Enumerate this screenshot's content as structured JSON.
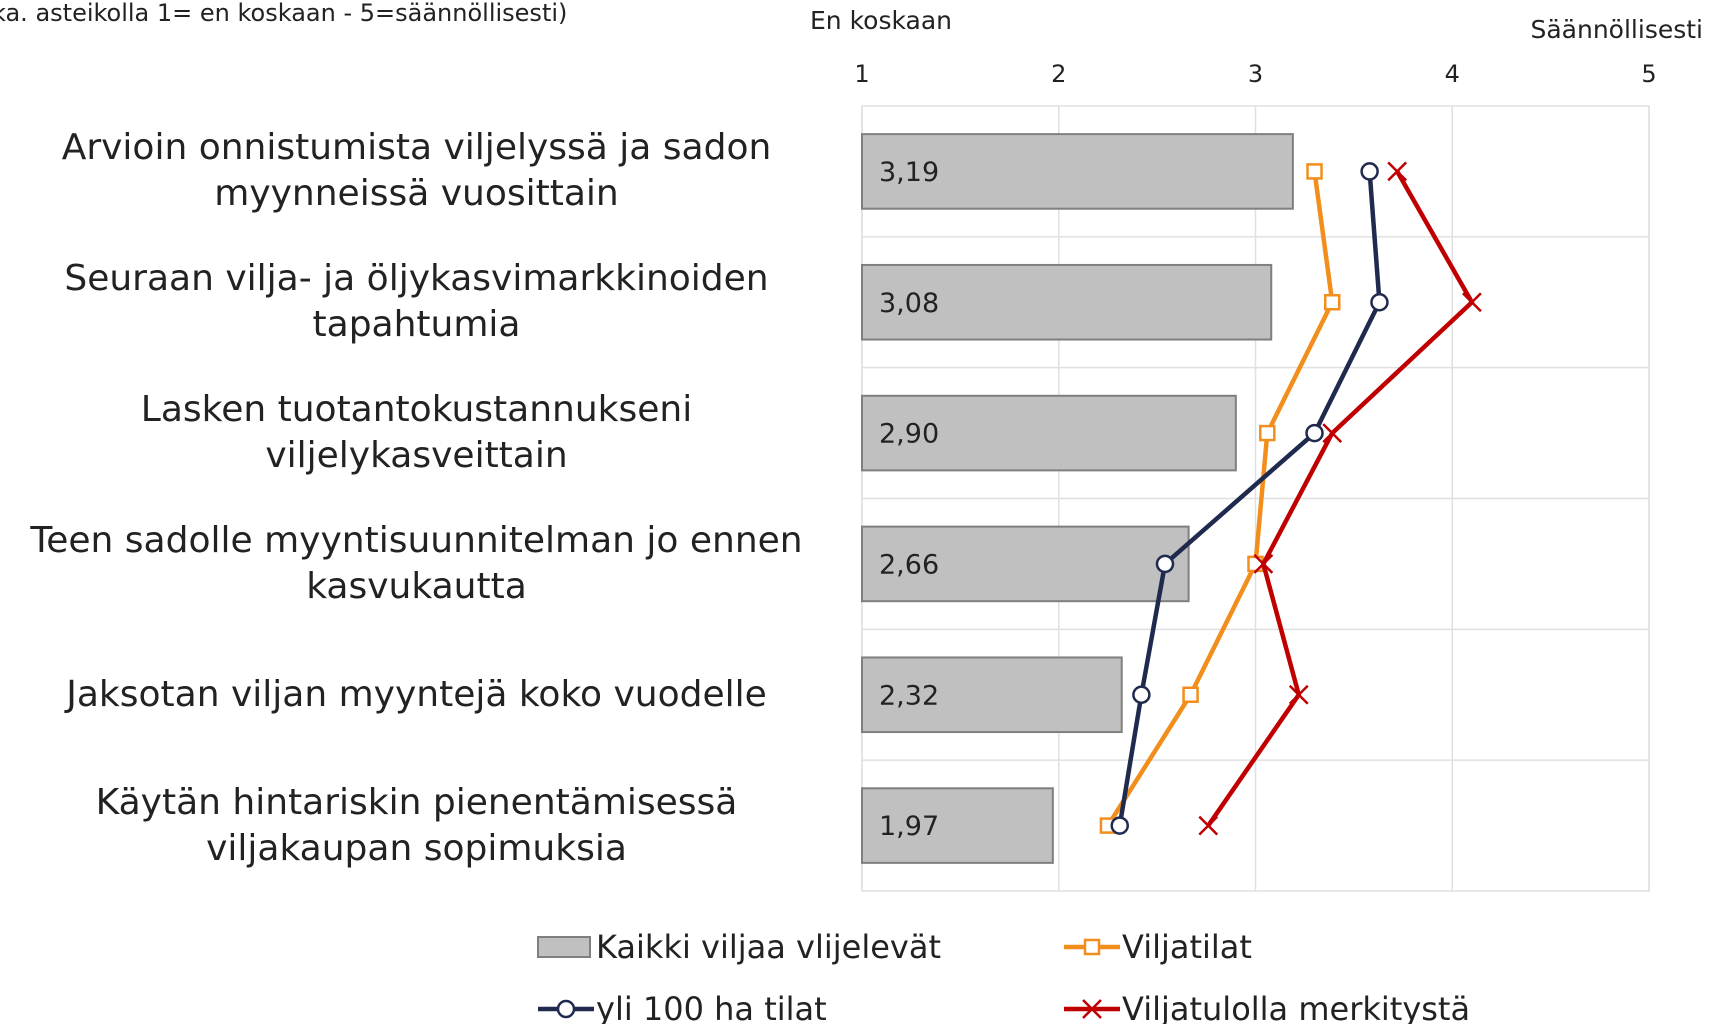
{
  "chart_data": {
    "type": "bar",
    "orientation": "horizontal",
    "subtitle": "ka. asteikolla 1= en koskaan - 5=säännöllisesti)",
    "annotations": [
      "En koskaan",
      "Säännöllisesti"
    ],
    "categories": [
      "Arvioin onnistumista viljelyssä ja sadon myynneissä vuosittain",
      "Seuraan vilja- ja öljykasvimarkkinoiden tapahtumia",
      "Lasken tuotantokustannukseni viljelykasveittain",
      "Teen sadolle myyntisuunnitelman jo ennen kasvukautta",
      "Jaksotan viljan myyntejä koko vuodelle",
      "Käytän hintariskin pienentämisessä viljakaupan sopimuksia"
    ],
    "xlim": [
      1,
      5
    ],
    "xticks": [
      1,
      2,
      3,
      4,
      5
    ],
    "grid": true,
    "series": [
      {
        "name": "Kaikki viljaa vlijelevät",
        "type": "bar",
        "color": "#c0c0c0",
        "values": [
          3.19,
          3.08,
          2.9,
          2.66,
          2.32,
          1.97
        ],
        "value_labels": [
          "3,19",
          "3,08",
          "2,90",
          "2,66",
          "2,32",
          "1,97"
        ]
      },
      {
        "name": "Viljatilat",
        "type": "line",
        "marker": "square",
        "color": "#f28e1c",
        "values": [
          3.3,
          3.39,
          3.06,
          3.0,
          2.67,
          2.25
        ]
      },
      {
        "name": "yli 100 ha tilat",
        "type": "line",
        "marker": "circle",
        "color": "#1f2a4e",
        "values": [
          3.58,
          3.63,
          3.3,
          2.54,
          2.42,
          2.31
        ]
      },
      {
        "name": "Viljatulolla merkitystä",
        "type": "line",
        "marker": "x",
        "color": "#c00000",
        "values": [
          3.72,
          4.1,
          3.39,
          3.04,
          3.22,
          2.76
        ]
      }
    ]
  }
}
